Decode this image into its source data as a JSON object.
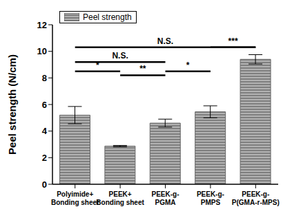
{
  "chart_data": {
    "type": "bar",
    "categories": [
      "Polyimide+\nBonding sheet",
      "PEEK+\nBonding sheet",
      "PEEK-g-\nPGMA",
      "PEEK-g-\nPMPS",
      "PEEK-g-\nP(GMA-r-MPS)"
    ],
    "series": [
      {
        "name": "Peel strength",
        "color": "#7f7f7f",
        "values": [
          5.2,
          2.87,
          4.6,
          5.45,
          9.4
        ],
        "errors": [
          0.65,
          0.05,
          0.3,
          0.45,
          0.35
        ]
      }
    ],
    "y_label": "Peel strength (N/cm)",
    "ylim": [
      0,
      12
    ],
    "yticks": [
      0,
      2,
      4,
      6,
      8,
      10,
      12
    ],
    "legend": "upper left",
    "annotations": [
      {
        "text": "N.S.",
        "between": [
          "Polyimide+\nBonding sheet",
          "PEEK-g-\nP(GMA-r-MPS)"
        ]
      },
      {
        "text": "***",
        "between": [
          "PEEK-g-\nPMPS",
          "PEEK-g-\nP(GMA-r-MPS)"
        ]
      },
      {
        "text": "N.S.",
        "between": [
          "Polyimide+\nBonding sheet",
          "PEEK-g-\nPGMA"
        ]
      },
      {
        "text": "*",
        "between": [
          "Polyimide+\nBonding sheet",
          "PEEK+\nBonding sheet"
        ]
      },
      {
        "text": "**",
        "between": [
          "PEEK+\nBonding sheet",
          "PEEK-g-\nPGMA"
        ]
      },
      {
        "text": "*",
        "between": [
          "PEEK-g-\nPGMA",
          "PEEK-g-\nPMPS"
        ]
      }
    ]
  }
}
